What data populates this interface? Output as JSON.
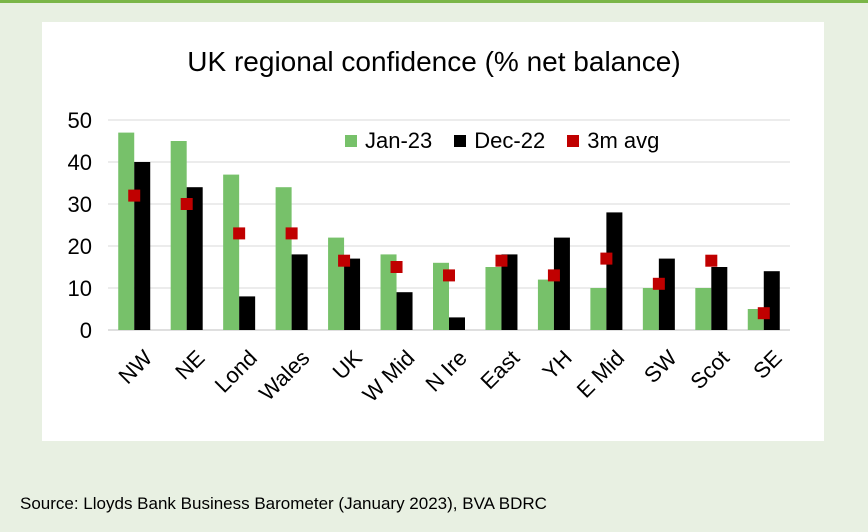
{
  "chart_data": {
    "type": "bar",
    "title": "UK regional confidence (% net balance)",
    "categories": [
      "NW",
      "NE",
      "Lond",
      "Wales",
      "UK",
      "W Mid",
      "N Ire",
      "East",
      "YH",
      "E Mid",
      "SW",
      "Scot",
      "SE"
    ],
    "series": [
      {
        "name": "Jan-23",
        "type": "bar",
        "color": "#77c16a",
        "values": [
          47,
          45,
          37,
          34,
          22,
          18,
          16,
          15,
          12,
          10,
          10,
          10,
          5
        ]
      },
      {
        "name": "Dec-22",
        "type": "bar",
        "color": "#000000",
        "values": [
          40,
          34,
          8,
          18,
          17,
          9,
          3,
          18,
          22,
          28,
          17,
          15,
          14
        ]
      },
      {
        "name": "3m avg",
        "type": "marker",
        "color": "#c00000",
        "values": [
          32,
          30,
          23,
          23,
          16.5,
          15,
          13,
          16.5,
          13,
          17,
          11,
          16.5,
          4
        ]
      }
    ],
    "ylim": [
      0,
      50
    ],
    "yticks": [
      0,
      10,
      20,
      30,
      40,
      50
    ],
    "grid": true,
    "legend_position": "top-right"
  },
  "source": "Source: Lloyds Bank Business Barometer (January 2023), BVA BDRC"
}
